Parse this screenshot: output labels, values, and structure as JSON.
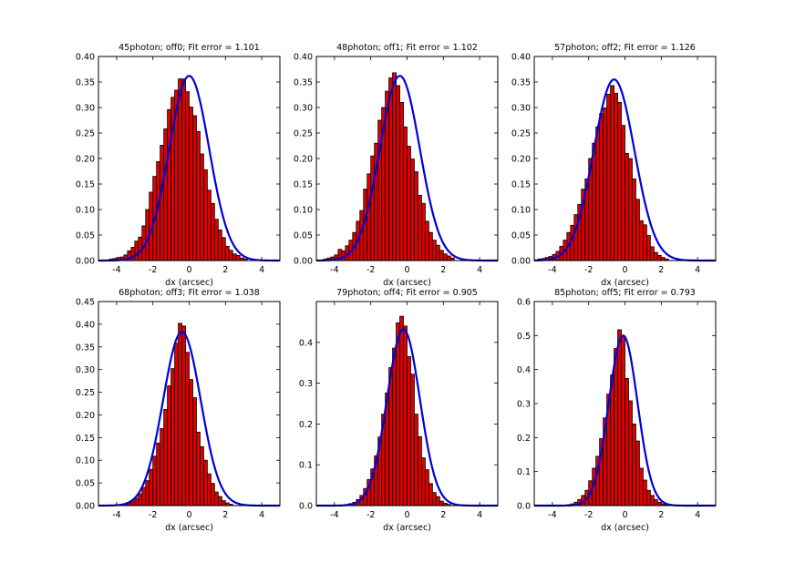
{
  "figure": {
    "background": "#ffffff",
    "bar_color": "#dd0000",
    "bar_edge": "#000000",
    "fit_color": "#0000dd"
  },
  "chart_data": [
    {
      "type": "bar",
      "title": "45photon; off0; Fit error = 1.101",
      "xlabel": "dx (arcsec)",
      "ylabel": "",
      "xlim": [
        -5,
        5
      ],
      "ylim": [
        0,
        0.4
      ],
      "xticks": [
        -4,
        -2,
        0,
        2,
        4
      ],
      "yticks": [
        0.0,
        0.05,
        0.1,
        0.15,
        0.2,
        0.25,
        0.3,
        0.35,
        0.4
      ],
      "ytick_labels": [
        "0.00",
        "0.05",
        "0.10",
        "0.15",
        "0.20",
        "0.25",
        "0.30",
        "0.35",
        "0.40"
      ],
      "bins": {
        "start": -4.4,
        "width": 0.2
      },
      "values": [
        0.003,
        0.004,
        0.006,
        0.007,
        0.011,
        0.019,
        0.026,
        0.038,
        0.046,
        0.068,
        0.1,
        0.134,
        0.165,
        0.194,
        0.226,
        0.258,
        0.296,
        0.32,
        0.334,
        0.356,
        0.356,
        0.331,
        0.301,
        0.284,
        0.253,
        0.209,
        0.178,
        0.138,
        0.112,
        0.081,
        0.06,
        0.045,
        0.028,
        0.02,
        0.013,
        0.01,
        0.005,
        0.003
      ],
      "fit": {
        "mu": 0.0,
        "sigma": 1.101,
        "amp": 0.362,
        "label": "Gaussian fit"
      }
    },
    {
      "type": "bar",
      "title": "48photon; off1; Fit error = 1.102",
      "xlabel": "dx (arcsec)",
      "ylabel": "",
      "xlim": [
        -5,
        5
      ],
      "ylim": [
        0,
        0.4
      ],
      "xticks": [
        -4,
        -2,
        0,
        2,
        4
      ],
      "yticks": [
        0.0,
        0.05,
        0.1,
        0.15,
        0.2,
        0.25,
        0.3,
        0.35,
        0.4
      ],
      "ytick_labels": [
        "0.00",
        "0.05",
        "0.10",
        "0.15",
        "0.20",
        "0.25",
        "0.30",
        "0.35",
        "0.40"
      ],
      "bins": {
        "start": -4.6,
        "width": 0.2
      },
      "values": [
        0.003,
        0.005,
        0.007,
        0.011,
        0.022,
        0.019,
        0.029,
        0.04,
        0.055,
        0.077,
        0.098,
        0.14,
        0.17,
        0.205,
        0.23,
        0.275,
        0.3,
        0.332,
        0.358,
        0.368,
        0.343,
        0.31,
        0.262,
        0.224,
        0.199,
        0.174,
        0.128,
        0.112,
        0.077,
        0.055,
        0.04,
        0.03,
        0.02,
        0.013,
        0.009,
        0.005
      ],
      "fit": {
        "mu": -0.4,
        "sigma": 1.102,
        "amp": 0.362,
        "label": "Gaussian fit"
      }
    },
    {
      "type": "bar",
      "title": "57photon; off2; Fit error = 1.126",
      "xlabel": "dx (arcsec)",
      "ylabel": "",
      "xlim": [
        -5,
        5
      ],
      "ylim": [
        0,
        0.4
      ],
      "xticks": [
        -4,
        -2,
        0,
        2,
        4
      ],
      "yticks": [
        0.0,
        0.05,
        0.1,
        0.15,
        0.2,
        0.25,
        0.3,
        0.35,
        0.4
      ],
      "ytick_labels": [
        "0.00",
        "0.05",
        "0.10",
        "0.15",
        "0.20",
        "0.25",
        "0.30",
        "0.35",
        "0.40"
      ],
      "bins": {
        "start": -4.8,
        "width": 0.2
      },
      "values": [
        0.003,
        0.004,
        0.006,
        0.008,
        0.012,
        0.018,
        0.028,
        0.04,
        0.055,
        0.069,
        0.09,
        0.11,
        0.14,
        0.16,
        0.2,
        0.23,
        0.262,
        0.288,
        0.299,
        0.326,
        0.343,
        0.328,
        0.31,
        0.265,
        0.21,
        0.2,
        0.16,
        0.12,
        0.078,
        0.07,
        0.049,
        0.027,
        0.016,
        0.01,
        0.006,
        0.003
      ],
      "fit": {
        "mu": -0.6,
        "sigma": 1.126,
        "amp": 0.355,
        "label": "Gaussian fit"
      }
    },
    {
      "type": "bar",
      "title": "68photon; off3; Fit error = 1.038",
      "xlabel": "dx (arcsec)",
      "ylabel": "",
      "xlim": [
        -5,
        5
      ],
      "ylim": [
        0,
        0.45
      ],
      "xticks": [
        -4,
        -2,
        0,
        2,
        4
      ],
      "yticks": [
        0.0,
        0.05,
        0.1,
        0.15,
        0.2,
        0.25,
        0.3,
        0.35,
        0.4,
        0.45
      ],
      "ytick_labels": [
        "0.00",
        "0.05",
        "0.10",
        "0.15",
        "0.20",
        "0.25",
        "0.30",
        "0.35",
        "0.40",
        "0.45"
      ],
      "bins": {
        "start": -3.6,
        "width": 0.2
      },
      "values": [
        0.004,
        0.006,
        0.01,
        0.016,
        0.026,
        0.04,
        0.055,
        0.08,
        0.109,
        0.138,
        0.17,
        0.212,
        0.264,
        0.302,
        0.358,
        0.402,
        0.396,
        0.338,
        0.278,
        0.238,
        0.162,
        0.13,
        0.1,
        0.07,
        0.049,
        0.03,
        0.02,
        0.011,
        0.006,
        0.003
      ],
      "fit": {
        "mu": -0.4,
        "sigma": 1.038,
        "amp": 0.383,
        "label": "Gaussian fit"
      }
    },
    {
      "type": "bar",
      "title": "79photon; off4; Fit error = 0.905",
      "xlabel": "dx (arcsec)",
      "ylabel": "",
      "xlim": [
        -5,
        5
      ],
      "ylim": [
        0,
        0.5
      ],
      "xticks": [
        -4,
        -2,
        0,
        2,
        4
      ],
      "yticks": [
        0.0,
        0.1,
        0.2,
        0.3,
        0.4
      ],
      "ytick_labels": [
        "0.0",
        "0.1",
        "0.2",
        "0.3",
        "0.4"
      ],
      "bins": {
        "start": -3.4,
        "width": 0.2
      },
      "values": [
        0.003,
        0.005,
        0.008,
        0.015,
        0.025,
        0.042,
        0.064,
        0.09,
        0.122,
        0.168,
        0.224,
        0.276,
        0.338,
        0.386,
        0.448,
        0.464,
        0.44,
        0.365,
        0.322,
        0.224,
        0.169,
        0.117,
        0.088,
        0.054,
        0.032,
        0.022,
        0.011,
        0.006,
        0.003
      ],
      "fit": {
        "mu": -0.2,
        "sigma": 0.905,
        "amp": 0.432,
        "label": "Gaussian fit"
      }
    },
    {
      "type": "bar",
      "title": "85photon; off5; Fit error = 0.793",
      "xlabel": "dx (arcsec)",
      "ylabel": "",
      "xlim": [
        -5,
        5
      ],
      "ylim": [
        0,
        0.6
      ],
      "xticks": [
        -4,
        -2,
        0,
        2,
        4
      ],
      "yticks": [
        0.0,
        0.1,
        0.2,
        0.3,
        0.4,
        0.5,
        0.6
      ],
      "ytick_labels": [
        "0.0",
        "0.1",
        "0.2",
        "0.3",
        "0.4",
        "0.5",
        "0.6"
      ],
      "bins": {
        "start": -3.2,
        "width": 0.2
      },
      "values": [
        0.003,
        0.005,
        0.01,
        0.018,
        0.03,
        0.045,
        0.073,
        0.11,
        0.145,
        0.197,
        0.258,
        0.328,
        0.384,
        0.462,
        0.517,
        0.499,
        0.374,
        0.308,
        0.24,
        0.19,
        0.11,
        0.075,
        0.045,
        0.03,
        0.018,
        0.01,
        0.005,
        0.003
      ],
      "fit": {
        "mu": -0.1,
        "sigma": 0.793,
        "amp": 0.5,
        "label": "Gaussian fit"
      }
    }
  ]
}
